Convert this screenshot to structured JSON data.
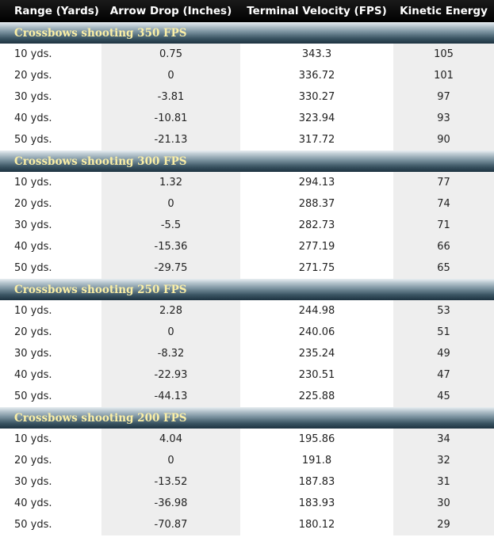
{
  "headers": {
    "range": "Range (Yards)",
    "drop": "Arrow Drop (Inches)",
    "velocity": "Terminal Velocity (FPS)",
    "energy": "Kinetic Energy"
  },
  "groups": [
    {
      "title": "Crossbows shooting 350 FPS",
      "rows": [
        {
          "range": "10 yds.",
          "drop": "0.75",
          "velocity": "343.3",
          "energy": "105"
        },
        {
          "range": "20 yds.",
          "drop": "0",
          "velocity": "336.72",
          "energy": "101"
        },
        {
          "range": "30 yds.",
          "drop": "-3.81",
          "velocity": "330.27",
          "energy": "97"
        },
        {
          "range": "40 yds.",
          "drop": "-10.81",
          "velocity": "323.94",
          "energy": "93"
        },
        {
          "range": "50 yds.",
          "drop": "-21.13",
          "velocity": "317.72",
          "energy": "90"
        }
      ]
    },
    {
      "title": "Crossbows shooting 300 FPS",
      "rows": [
        {
          "range": "10 yds.",
          "drop": "1.32",
          "velocity": "294.13",
          "energy": "77"
        },
        {
          "range": "20 yds.",
          "drop": "0",
          "velocity": "288.37",
          "energy": "74"
        },
        {
          "range": "30 yds.",
          "drop": "-5.5",
          "velocity": "282.73",
          "energy": "71"
        },
        {
          "range": "40 yds.",
          "drop": "-15.36",
          "velocity": "277.19",
          "energy": "66"
        },
        {
          "range": "50 yds.",
          "drop": "-29.75",
          "velocity": "271.75",
          "energy": "65"
        }
      ]
    },
    {
      "title": "Crossbows shooting 250 FPS",
      "rows": [
        {
          "range": "10 yds.",
          "drop": "2.28",
          "velocity": "244.98",
          "energy": "53"
        },
        {
          "range": "20 yds.",
          "drop": "0",
          "velocity": "240.06",
          "energy": "51"
        },
        {
          "range": "30 yds.",
          "drop": "-8.32",
          "velocity": "235.24",
          "energy": "49"
        },
        {
          "range": "40 yds.",
          "drop": "-22.93",
          "velocity": "230.51",
          "energy": "47"
        },
        {
          "range": "50 yds.",
          "drop": "-44.13",
          "velocity": "225.88",
          "energy": "45"
        }
      ]
    },
    {
      "title": "Crossbows shooting 200 FPS",
      "rows": [
        {
          "range": "10 yds.",
          "drop": "4.04",
          "velocity": "195.86",
          "energy": "34"
        },
        {
          "range": "20 yds.",
          "drop": "0",
          "velocity": "191.8",
          "energy": "32"
        },
        {
          "range": "30 yds.",
          "drop": "-13.52",
          "velocity": "187.83",
          "energy": "31"
        },
        {
          "range": "40 yds.",
          "drop": "-36.98",
          "velocity": "183.93",
          "energy": "30"
        },
        {
          "range": "50 yds.",
          "drop": "-70.87",
          "velocity": "180.12",
          "energy": "29"
        }
      ]
    }
  ]
}
